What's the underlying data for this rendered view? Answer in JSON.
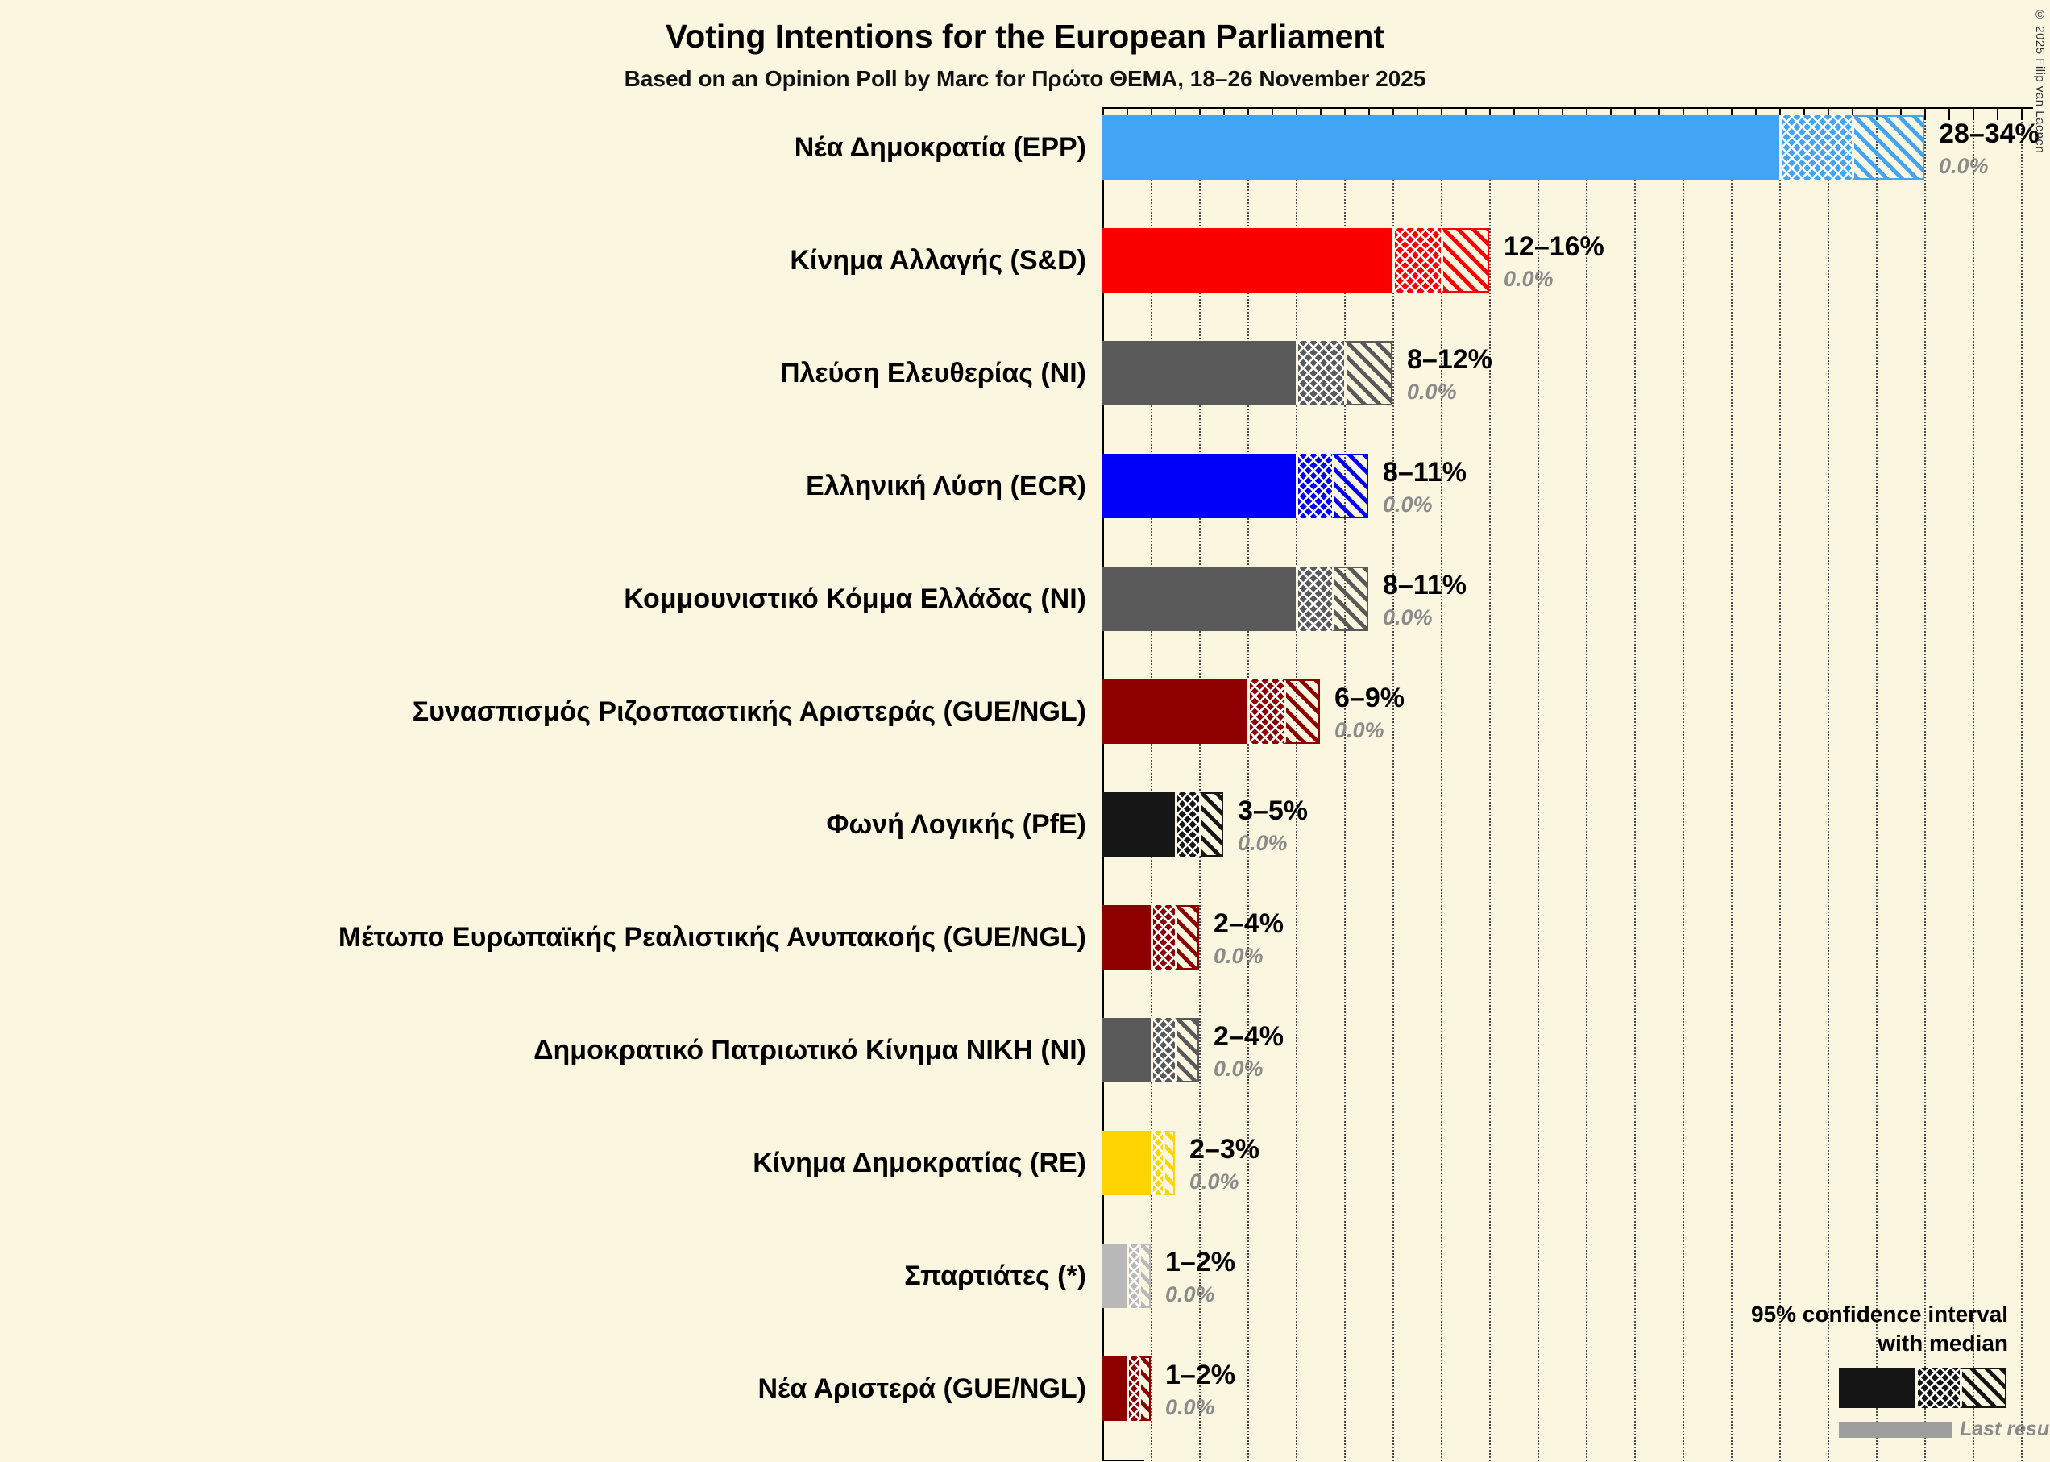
{
  "chart_data": {
    "type": "bar",
    "title": "Voting Intentions for the European Parliament",
    "subtitle": "Based on an Opinion Poll by Marc for Πρώτο ΘΕΜΑ, 18–26 November 2025",
    "unit": "%",
    "xlabel": "",
    "ylabel": "",
    "x_axis": {
      "min": 0,
      "max": 38.5,
      "tick_step": 1,
      "grid_step": 2
    },
    "grid": "dotted-vertical",
    "legend_position": "bottom-right",
    "legend": {
      "line1": "95% confidence interval",
      "line2": "with median",
      "last_result": "Last result"
    },
    "copyright": "© 2025 Filip van Laenen",
    "series": [
      {
        "party": "Νέα Δημοκρατία (EPP)",
        "low": 28,
        "median": 31,
        "high": 34,
        "range_label": "28–34%",
        "last_result": "0.0%",
        "color": "#42A4F5"
      },
      {
        "party": "Κίνημα Αλλαγής (S&D)",
        "low": 12,
        "median": 14,
        "high": 16,
        "range_label": "12–16%",
        "last_result": "0.0%",
        "color": "#FA0000"
      },
      {
        "party": "Πλεύση Ελευθερίας (NI)",
        "low": 8,
        "median": 10,
        "high": 12,
        "range_label": "8–12%",
        "last_result": "0.0%",
        "color": "#595959"
      },
      {
        "party": "Ελληνική Λύση (ECR)",
        "low": 8,
        "median": 9.5,
        "high": 11,
        "range_label": "8–11%",
        "last_result": "0.0%",
        "color": "#0000FA"
      },
      {
        "party": "Κομμουνιστικό Κόμμα Ελλάδας (NI)",
        "low": 8,
        "median": 9.5,
        "high": 11,
        "range_label": "8–11%",
        "last_result": "0.0%",
        "color": "#595959"
      },
      {
        "party": "Συνασπισμός Ριζοσπαστικής Αριστεράς (GUE/NGL)",
        "low": 6,
        "median": 7.5,
        "high": 9,
        "range_label": "6–9%",
        "last_result": "0.0%",
        "color": "#8E0000"
      },
      {
        "party": "Φωνή Λογικής (PfE)",
        "low": 3,
        "median": 4,
        "high": 5,
        "range_label": "3–5%",
        "last_result": "0.0%",
        "color": "#161616"
      },
      {
        "party": "Μέτωπο Ευρωπαϊκής Ρεαλιστικής Ανυπακοής (GUE/NGL)",
        "low": 2,
        "median": 3,
        "high": 4,
        "range_label": "2–4%",
        "last_result": "0.0%",
        "color": "#8E0000"
      },
      {
        "party": "Δημοκρατικό Πατριωτικό Κίνημα ΝΙΚΗ (NI)",
        "low": 2,
        "median": 3,
        "high": 4,
        "range_label": "2–4%",
        "last_result": "0.0%",
        "color": "#595959"
      },
      {
        "party": "Κίνημα Δημοκρατίας (RE)",
        "low": 2,
        "median": 2.5,
        "high": 3,
        "range_label": "2–3%",
        "last_result": "0.0%",
        "color": "#FFD400"
      },
      {
        "party": "Σπαρτιάτες (*)",
        "low": 1,
        "median": 1.5,
        "high": 2,
        "range_label": "1–2%",
        "last_result": "0.0%",
        "color": "#B9B9B9"
      },
      {
        "party": "Νέα Αριστερά (GUE/NGL)",
        "low": 1,
        "median": 1.5,
        "high": 2,
        "range_label": "1–2%",
        "last_result": "0.0%",
        "color": "#8E0000"
      }
    ]
  },
  "colors": {
    "background": "#FBF6DF",
    "axis": "#000000",
    "grid": "#4A4A4A",
    "last_result_text": "#8B8B8B",
    "last_result_bar": "#9E9E9E"
  }
}
